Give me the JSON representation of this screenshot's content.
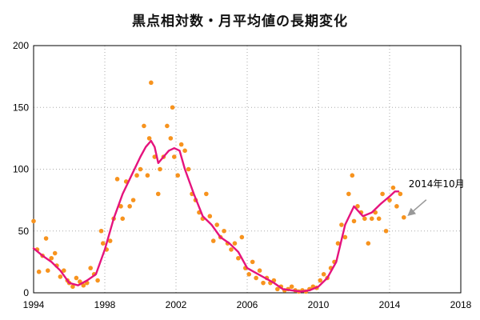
{
  "chart_data": {
    "type": "scatter",
    "title": "黒点相対数・月平均値の長期変化",
    "xlabel": "",
    "ylabel": "",
    "xlim": [
      1994,
      2018
    ],
    "ylim": [
      0,
      200
    ],
    "x_ticks": [
      "1994",
      "1998",
      "2002",
      "2006",
      "2010",
      "2014",
      "2018"
    ],
    "y_ticks": [
      "0",
      "50",
      "100",
      "150",
      "200"
    ],
    "grid": true,
    "colors": {
      "monthly": "#f7931e",
      "smoothed": "#e5137d",
      "arrow": "#999999"
    },
    "annotation": {
      "text": "2014年10月",
      "x": 2014.8,
      "y": 61
    },
    "series": [
      {
        "kind": "points",
        "x": [
          1994.0,
          1994.2,
          1994.3,
          1994.5,
          1994.7,
          1994.8,
          1995.0,
          1995.2,
          1995.3,
          1995.5,
          1995.7,
          1995.9,
          1996.0,
          1996.2,
          1996.4,
          1996.6,
          1996.8,
          1997.0,
          1997.2,
          1997.4,
          1997.6,
          1997.8,
          1997.9,
          1998.1,
          1998.3,
          1998.5,
          1998.7,
          1998.9,
          1999.0,
          1999.2,
          1999.4,
          1999.6,
          1999.8,
          2000.0,
          2000.2,
          2000.4,
          2000.5,
          2000.6,
          2000.8,
          2001.0,
          2001.1,
          2001.3,
          2001.5,
          2001.7,
          2001.8,
          2001.9,
          2002.1,
          2002.3,
          2002.5,
          2002.7,
          2002.9,
          2003.1,
          2003.3,
          2003.5,
          2003.7,
          2003.9,
          2004.1,
          2004.3,
          2004.5,
          2004.7,
          2004.9,
          2005.1,
          2005.3,
          2005.5,
          2005.7,
          2005.9,
          2006.1,
          2006.3,
          2006.5,
          2006.7,
          2006.9,
          2007.1,
          2007.3,
          2007.5,
          2007.7,
          2007.9,
          2008.1,
          2008.3,
          2008.5,
          2008.7,
          2008.9,
          2009.1,
          2009.3,
          2009.5,
          2009.7,
          2009.9,
          2010.1,
          2010.3,
          2010.5,
          2010.7,
          2010.9,
          2011.1,
          2011.3,
          2011.5,
          2011.7,
          2011.9,
          2012.0,
          2012.2,
          2012.4,
          2012.6,
          2012.8,
          2013.0,
          2013.2,
          2013.4,
          2013.6,
          2013.8,
          2014.0,
          2014.2,
          2014.4,
          2014.6,
          2014.8
        ],
        "y": [
          58,
          35,
          17,
          30,
          44,
          18,
          28,
          32,
          22,
          13,
          18,
          10,
          8,
          5,
          12,
          9,
          6,
          8,
          20,
          15,
          10,
          50,
          40,
          35,
          42,
          60,
          92,
          70,
          60,
          90,
          70,
          75,
          95,
          100,
          135,
          95,
          125,
          170,
          110,
          80,
          100,
          110,
          135,
          125,
          150,
          110,
          95,
          120,
          115,
          100,
          80,
          75,
          65,
          60,
          80,
          62,
          42,
          55,
          45,
          50,
          40,
          35,
          40,
          28,
          45,
          20,
          15,
          25,
          12,
          18,
          8,
          12,
          8,
          10,
          3,
          5,
          2,
          3,
          5,
          2,
          1,
          2,
          1,
          3,
          5,
          4,
          10,
          15,
          12,
          20,
          25,
          40,
          55,
          45,
          80,
          95,
          58,
          70,
          65,
          60,
          40,
          60,
          65,
          60,
          80,
          50,
          75,
          85,
          70,
          80,
          61
        ],
        "unit": "count"
      },
      {
        "kind": "line",
        "x": [
          1994.0,
          1994.5,
          1995.0,
          1995.5,
          1996.0,
          1996.5,
          1997.0,
          1997.5,
          1998.0,
          1998.5,
          1999.0,
          1999.5,
          2000.0,
          2000.3,
          2000.6,
          2000.8,
          2001.0,
          2001.3,
          2001.6,
          2001.9,
          2002.2,
          2002.5,
          2003.0,
          2003.5,
          2004.0,
          2004.5,
          2005.0,
          2005.5,
          2006.0,
          2006.5,
          2007.0,
          2007.5,
          2008.0,
          2008.5,
          2009.0,
          2009.5,
          2010.0,
          2010.5,
          2011.0,
          2011.5,
          2012.0,
          2012.5,
          2013.0,
          2013.5,
          2014.0,
          2014.3,
          2014.5
        ],
        "y": [
          36,
          30,
          25,
          18,
          8,
          6,
          10,
          15,
          35,
          60,
          80,
          95,
          110,
          118,
          123,
          118,
          105,
          110,
          115,
          117,
          115,
          100,
          80,
          62,
          55,
          45,
          40,
          33,
          20,
          16,
          12,
          8,
          3,
          2,
          1,
          2,
          5,
          12,
          25,
          55,
          70,
          62,
          65,
          72,
          78,
          82,
          82
        ]
      }
    ]
  }
}
